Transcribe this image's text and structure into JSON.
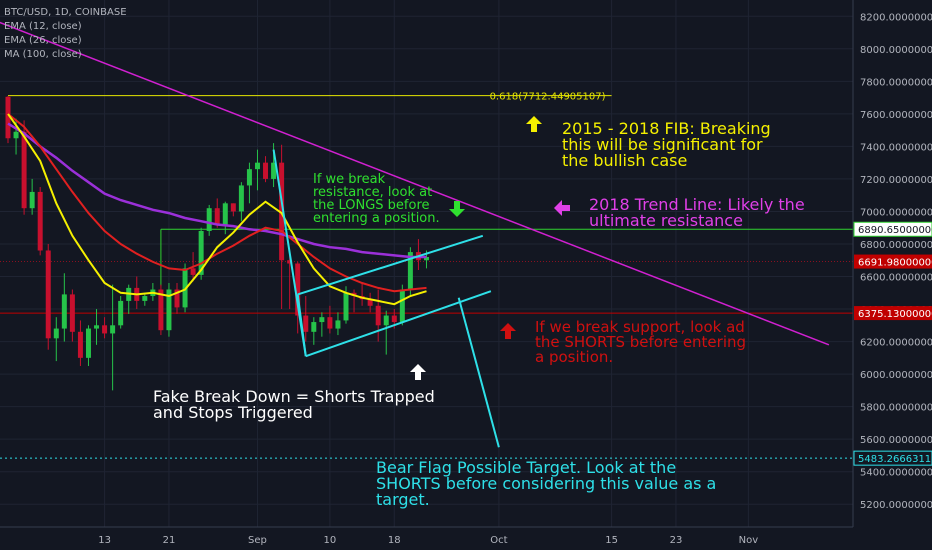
{
  "header": {
    "symbol_line": "BTC/USD, 1D, COINBASE",
    "indicators": [
      "EMA (12, close)",
      "EMA (26, close)",
      "MA (100, close)"
    ]
  },
  "colors": {
    "background": "#131722",
    "up_candle": "#26c34a",
    "down_candle": "#c8102e",
    "ema12": "#f5f000",
    "ema26": "#e02020",
    "ma100": "#9b30d9",
    "trendline": "#d020d0",
    "flag": "#2ee0e8",
    "fib_line": "#e6e600",
    "resistance_line": "#2fd32f",
    "support_line": "#c00000",
    "target_line": "#2ee0e8"
  },
  "chart_data": {
    "type": "line",
    "ylim": [
      5060,
      8300
    ],
    "y_ticks": [
      5200,
      5400,
      5600,
      5800,
      6000,
      6200,
      6400,
      6600,
      6800,
      7000,
      7200,
      7400,
      7600,
      7800,
      8000,
      8200
    ],
    "y_tick_labels": [
      "5200.00000000",
      "5400.00000000",
      "5600.00000000",
      "5800.00000000",
      "6000.00000000",
      "6200.00000000",
      "6400.00000000",
      "6600.00000000",
      "6800.00000000",
      "7000.00000000",
      "7200.00000000",
      "7400.00000000",
      "7600.00000000",
      "7800.00000000",
      "8000.00000000",
      "8200.00000000"
    ],
    "x_range_days": [
      0,
      105
    ],
    "x_ticks": [
      {
        "day": 12,
        "label": "13"
      },
      {
        "day": 20,
        "label": "21"
      },
      {
        "day": 31,
        "label": "Sep"
      },
      {
        "day": 40,
        "label": "10"
      },
      {
        "day": 48,
        "label": "18"
      },
      {
        "day": 61,
        "label": "Oct"
      },
      {
        "day": 75,
        "label": "15"
      },
      {
        "day": 83,
        "label": "23"
      },
      {
        "day": 92,
        "label": "Nov"
      }
    ],
    "candles": [
      [
        7705,
        7710,
        7420,
        7450
      ],
      [
        7450,
        7570,
        7350,
        7490
      ],
      [
        7490,
        7560,
        6980,
        7020
      ],
      [
        7020,
        7200,
        6980,
        7120
      ],
      [
        7120,
        7150,
        6730,
        6760
      ],
      [
        6760,
        6800,
        6150,
        6220
      ],
      [
        6220,
        6350,
        6080,
        6280
      ],
      [
        6280,
        6620,
        6200,
        6490
      ],
      [
        6490,
        6520,
        6200,
        6260
      ],
      [
        6260,
        6330,
        6050,
        6100
      ],
      [
        6100,
        6300,
        6050,
        6280
      ],
      [
        6280,
        6400,
        6180,
        6300
      ],
      [
        6300,
        6350,
        6220,
        6250
      ],
      [
        6250,
        6550,
        5900,
        6300
      ],
      [
        6300,
        6480,
        6280,
        6450
      ],
      [
        6450,
        6550,
        6370,
        6530
      ],
      [
        6530,
        6600,
        6400,
        6450
      ],
      [
        6450,
        6500,
        6420,
        6480
      ],
      [
        6480,
        6560,
        6450,
        6520
      ],
      [
        6520,
        6550,
        6240,
        6270
      ],
      [
        6270,
        6560,
        6230,
        6520
      ],
      [
        6520,
        6560,
        6370,
        6410
      ],
      [
        6410,
        6680,
        6380,
        6650
      ],
      [
        6650,
        6750,
        6570,
        6610
      ],
      [
        6610,
        6900,
        6580,
        6880
      ],
      [
        6880,
        7040,
        6850,
        7020
      ],
      [
        7020,
        7080,
        6900,
        6920
      ],
      [
        6920,
        7060,
        6860,
        7050
      ],
      [
        7050,
        7050,
        6970,
        7000
      ],
      [
        7000,
        7180,
        6940,
        7160
      ],
      [
        7160,
        7300,
        7050,
        7260
      ],
      [
        7260,
        7380,
        7130,
        7300
      ],
      [
        7300,
        7340,
        7180,
        7200
      ],
      [
        7200,
        7420,
        7150,
        7300
      ],
      [
        7300,
        7410,
        6400,
        6700
      ],
      [
        6700,
        6730,
        6400,
        6680
      ],
      [
        6680,
        6690,
        6250,
        6360
      ],
      [
        6360,
        6480,
        6200,
        6260
      ],
      [
        6260,
        6350,
        6180,
        6320
      ],
      [
        6320,
        6380,
        6230,
        6350
      ],
      [
        6350,
        6420,
        6250,
        6280
      ],
      [
        6280,
        6380,
        6240,
        6330
      ],
      [
        6330,
        6540,
        6310,
        6500
      ],
      [
        6500,
        6520,
        6380,
        6480
      ],
      [
        6480,
        6560,
        6420,
        6460
      ],
      [
        6460,
        6500,
        6380,
        6420
      ],
      [
        6420,
        6520,
        6200,
        6300
      ],
      [
        6300,
        6390,
        6120,
        6360
      ],
      [
        6360,
        6400,
        6280,
        6320
      ],
      [
        6320,
        6550,
        6300,
        6520
      ],
      [
        6520,
        6780,
        6480,
        6750
      ],
      [
        6750,
        6830,
        6640,
        6700
      ],
      [
        6700,
        6760,
        6650,
        6720
      ]
    ],
    "ema12": [
      [
        0,
        7600
      ],
      [
        2,
        7460
      ],
      [
        4,
        7310
      ],
      [
        6,
        7050
      ],
      [
        8,
        6850
      ],
      [
        10,
        6700
      ],
      [
        12,
        6560
      ],
      [
        14,
        6500
      ],
      [
        16,
        6490
      ],
      [
        18,
        6500
      ],
      [
        20,
        6480
      ],
      [
        22,
        6520
      ],
      [
        24,
        6640
      ],
      [
        26,
        6780
      ],
      [
        28,
        6870
      ],
      [
        30,
        6980
      ],
      [
        32,
        7060
      ],
      [
        34,
        6990
      ],
      [
        36,
        6810
      ],
      [
        38,
        6650
      ],
      [
        40,
        6540
      ],
      [
        42,
        6500
      ],
      [
        44,
        6470
      ],
      [
        46,
        6450
      ],
      [
        48,
        6430
      ],
      [
        50,
        6480
      ],
      [
        52,
        6510
      ]
    ],
    "ema26": [
      [
        0,
        7600
      ],
      [
        2,
        7520
      ],
      [
        4,
        7400
      ],
      [
        6,
        7260
      ],
      [
        8,
        7120
      ],
      [
        10,
        6990
      ],
      [
        12,
        6880
      ],
      [
        14,
        6800
      ],
      [
        16,
        6740
      ],
      [
        18,
        6690
      ],
      [
        20,
        6650
      ],
      [
        22,
        6640
      ],
      [
        24,
        6680
      ],
      [
        26,
        6740
      ],
      [
        28,
        6790
      ],
      [
        30,
        6850
      ],
      [
        32,
        6900
      ],
      [
        34,
        6880
      ],
      [
        36,
        6800
      ],
      [
        38,
        6720
      ],
      [
        40,
        6650
      ],
      [
        42,
        6600
      ],
      [
        44,
        6560
      ],
      [
        46,
        6530
      ],
      [
        48,
        6510
      ],
      [
        50,
        6520
      ],
      [
        52,
        6530
      ]
    ],
    "ma100": [
      [
        0,
        7540
      ],
      [
        2,
        7480
      ],
      [
        4,
        7400
      ],
      [
        6,
        7330
      ],
      [
        8,
        7250
      ],
      [
        10,
        7180
      ],
      [
        12,
        7110
      ],
      [
        14,
        7070
      ],
      [
        16,
        7040
      ],
      [
        18,
        7010
      ],
      [
        20,
        6990
      ],
      [
        22,
        6960
      ],
      [
        24,
        6940
      ],
      [
        26,
        6920
      ],
      [
        28,
        6910
      ],
      [
        30,
        6890
      ],
      [
        32,
        6880
      ],
      [
        34,
        6860
      ],
      [
        36,
        6830
      ],
      [
        38,
        6800
      ],
      [
        40,
        6780
      ],
      [
        42,
        6770
      ],
      [
        44,
        6750
      ],
      [
        46,
        6740
      ],
      [
        48,
        6730
      ],
      [
        50,
        6720
      ],
      [
        52,
        6720
      ]
    ],
    "overlays": {
      "trend_line": [
        [
          -3,
          8200
        ],
        [
          102,
          6180
        ]
      ],
      "fib_level": 7712.44905107,
      "fib_start_day": 0,
      "fib_end_day": 75,
      "resistance_level": 6890.65,
      "resistance_start_day": 19,
      "support_level": 6375.13,
      "current_level": 6691.98,
      "target_level": 5483.26663119,
      "flag_upper": [
        [
          36,
          6490
        ],
        [
          59,
          6850
        ]
      ],
      "flag_lower": [
        [
          37,
          6110
        ],
        [
          60,
          6510
        ]
      ],
      "flag_left": [
        [
          33,
          7380
        ],
        [
          37,
          6110
        ]
      ],
      "pole_down": [
        [
          56,
          6470
        ],
        [
          57,
          6120
        ],
        [
          58,
          6500
        ]
      ],
      "projection": [
        [
          56,
          6470
        ],
        [
          61,
          5550
        ]
      ]
    },
    "price_tags": [
      {
        "value": 6890.65,
        "label": "6890.65000000",
        "style": "green"
      },
      {
        "value": 6691.98,
        "label": "6691.98000000",
        "style": "red"
      },
      {
        "value": 6375.13,
        "label": "6375.13000000",
        "style": "red"
      },
      {
        "value": 5483.26663119,
        "label": "5483.26663119",
        "style": "cyan"
      }
    ],
    "fib_label": "0.618(7712.44905107)"
  },
  "annotations": {
    "fib": "2015 - 2018 FIB: Breaking\nthis will be significant for\nthe bullish case",
    "trend": "2018 Trend Line: Likely the\nultimate resistance",
    "resistance": "If we break\nresistance, look at\nthe LONGS before\nentering a position.",
    "support": "If we break support, look ad\nthe SHORTS before entering\na position.",
    "fake": "Fake Break Down = Shorts Trapped\nand Stops Triggered",
    "target": "Bear Flag Possible Target. Look at the\nSHORTS before considering this value as a\ntarget."
  }
}
